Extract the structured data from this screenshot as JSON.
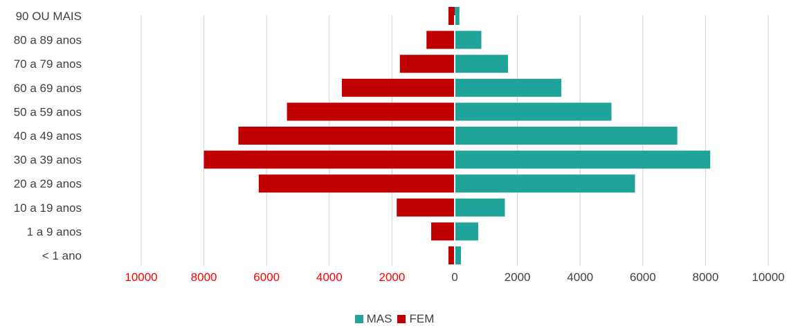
{
  "chart_data": {
    "type": "bar",
    "orientation": "horizontal",
    "layout": "population-pyramid",
    "title": "",
    "categories": [
      "< 1 ano",
      "1 a 9 anos",
      "10 a 19 anos",
      "20 a 29 anos",
      "30 a 39 anos",
      "40 a 49 anos",
      "50 a 59 anos",
      "60 a 69 anos",
      "70 a 79 anos",
      "80 a 89 anos",
      "90 OU MAIS"
    ],
    "series": [
      {
        "name": "MAS",
        "color": "#20a39a",
        "side": "right",
        "values": [
          200,
          750,
          1600,
          5750,
          8150,
          7100,
          5000,
          3400,
          1700,
          850,
          150
        ]
      },
      {
        "name": "FEM",
        "color": "#c00000",
        "side": "left",
        "values": [
          200,
          750,
          1850,
          6250,
          8000,
          6900,
          5350,
          3600,
          1750,
          900,
          200
        ]
      }
    ],
    "xlim": [
      -10000,
      10000
    ],
    "xticks": [
      {
        "value": -10000,
        "label": "10000",
        "color": "#ff0000"
      },
      {
        "value": -8000,
        "label": "8000",
        "color": "#ff0000"
      },
      {
        "value": -6000,
        "label": "6000",
        "color": "#ff0000"
      },
      {
        "value": -4000,
        "label": "4000",
        "color": "#ff0000"
      },
      {
        "value": -2000,
        "label": "2000",
        "color": "#ff0000"
      },
      {
        "value": 0,
        "label": "0",
        "color": "#404040"
      },
      {
        "value": 2000,
        "label": "2000",
        "color": "#404040"
      },
      {
        "value": 4000,
        "label": "4000",
        "color": "#404040"
      },
      {
        "value": 6000,
        "label": "6000",
        "color": "#404040"
      },
      {
        "value": 8000,
        "label": "8000",
        "color": "#404040"
      },
      {
        "value": 10000,
        "label": "10000",
        "color": "#404040"
      }
    ],
    "grid": true,
    "legend_position": "bottom"
  }
}
